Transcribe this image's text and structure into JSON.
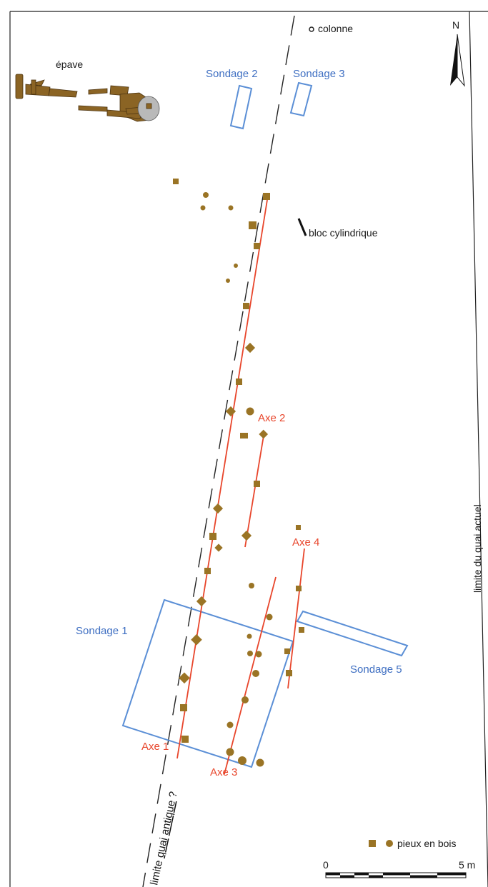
{
  "labels": {
    "epave": "épave",
    "colonne": "colonne",
    "north": "N",
    "sondage1": "Sondage 1",
    "sondage2": "Sondage 2",
    "sondage3": "Sondage 3",
    "sondage5": "Sondage 5",
    "bloc": "bloc cylindrique",
    "axe1": "Axe 1",
    "axe2": "Axe 2",
    "axe3": "Axe 3",
    "axe4": "Axe 4",
    "quai_actuel": "limite du quai actuel",
    "quai_antique_pre": "limite ",
    "quai_antique_quai": "quai",
    "quai_antique_mid": " ",
    "quai_antique_antique": "antique",
    "quai_antique_post": " ?",
    "legend": "pieux en bois",
    "scale_start": "0",
    "scale_end": "5 m"
  },
  "colors": {
    "sondage": "#5b8fd6",
    "axe": "#e8452b",
    "pieux": "#9a7425",
    "frame": "#222222"
  }
}
